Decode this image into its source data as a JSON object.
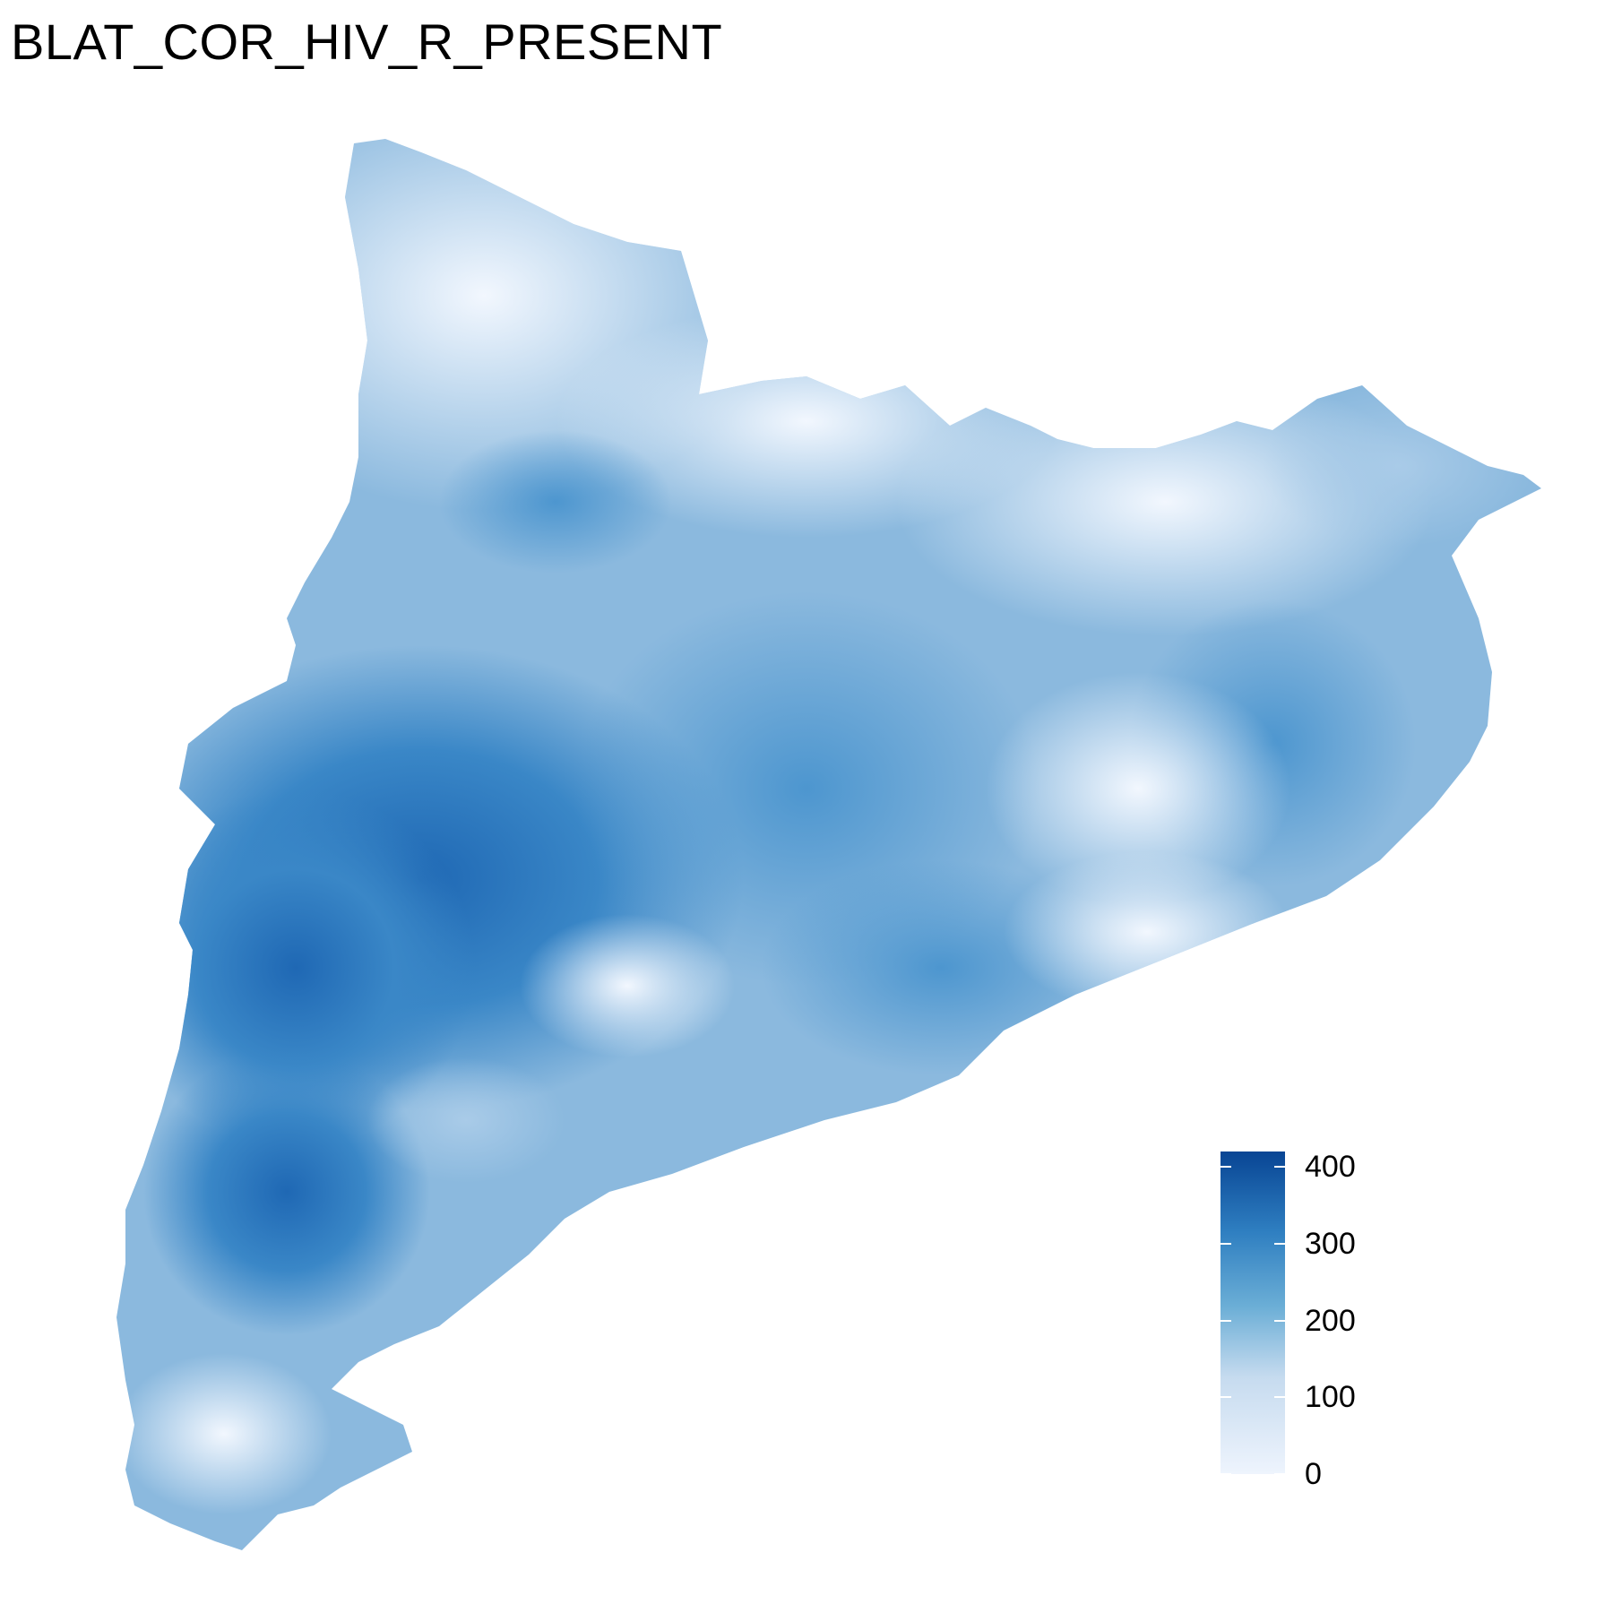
{
  "title": "BLAT_COR_HIV_R_PRESENT",
  "legend": {
    "ticks": [
      {
        "label": "400",
        "value": 400
      },
      {
        "label": "300",
        "value": 300
      },
      {
        "label": "200",
        "value": 200
      },
      {
        "label": "100",
        "value": 100
      },
      {
        "label": "0",
        "value": 0
      }
    ],
    "range": [
      0,
      420
    ],
    "colors": {
      "low": "#eef4fd",
      "mid": "#6baed6",
      "high": "#084594"
    }
  }
}
